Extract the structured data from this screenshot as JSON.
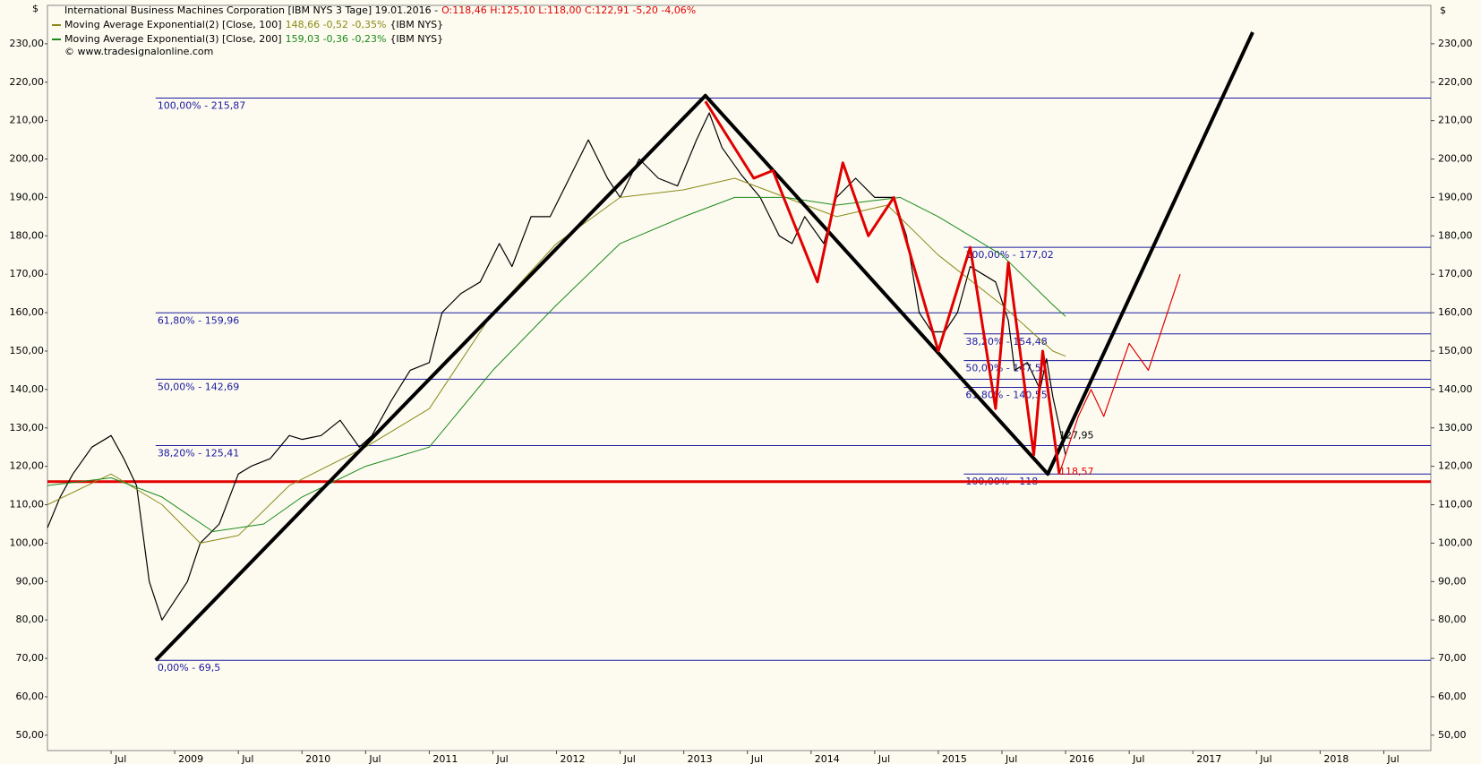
{
  "chart_data": {
    "type": "line",
    "currency": "$",
    "header": {
      "instrument": "International Business Machines Corporation [IBM NYS  3 Tage] 19.01.2016 -",
      "quote": "O:118,46 H:125,10 L:118,00 C:122,91 -5,20 -4,06%",
      "copyright": "© www.tradesignalonline.com"
    },
    "xlim": [
      2008.0,
      2018.87
    ],
    "ylim": [
      46,
      240
    ],
    "xticks": [
      {
        "value": 2008.5,
        "label": "Jul"
      },
      {
        "value": 2009,
        "label": "2009"
      },
      {
        "value": 2009.5,
        "label": "Jul"
      },
      {
        "value": 2010,
        "label": "2010"
      },
      {
        "value": 2010.5,
        "label": "Jul"
      },
      {
        "value": 2011,
        "label": "2011"
      },
      {
        "value": 2011.5,
        "label": "Jul"
      },
      {
        "value": 2012,
        "label": "2012"
      },
      {
        "value": 2012.5,
        "label": "Jul"
      },
      {
        "value": 2013,
        "label": "2013"
      },
      {
        "value": 2013.5,
        "label": "Jul"
      },
      {
        "value": 2014,
        "label": "2014"
      },
      {
        "value": 2014.5,
        "label": "Jul"
      },
      {
        "value": 2015,
        "label": "2015"
      },
      {
        "value": 2015.5,
        "label": "Jul"
      },
      {
        "value": 2016,
        "label": "2016"
      },
      {
        "value": 2016.5,
        "label": "Jul"
      },
      {
        "value": 2017,
        "label": "2017"
      },
      {
        "value": 2017.5,
        "label": "Jul"
      },
      {
        "value": 2018,
        "label": "2018"
      },
      {
        "value": 2018.5,
        "label": "Jul"
      }
    ],
    "yticks": [
      {
        "value": 50,
        "label": "50,00"
      },
      {
        "value": 60,
        "label": "60,00"
      },
      {
        "value": 70,
        "label": "70,00"
      },
      {
        "value": 80,
        "label": "80,00"
      },
      {
        "value": 90,
        "label": "90,00"
      },
      {
        "value": 100,
        "label": "100,00"
      },
      {
        "value": 110,
        "label": "110,00"
      },
      {
        "value": 120,
        "label": "120,00"
      },
      {
        "value": 130,
        "label": "130,00"
      },
      {
        "value": 140,
        "label": "140,00"
      },
      {
        "value": 150,
        "label": "150,00"
      },
      {
        "value": 160,
        "label": "160,00"
      },
      {
        "value": 170,
        "label": "170,00"
      },
      {
        "value": 180,
        "label": "180,00"
      },
      {
        "value": 190,
        "label": "190,00"
      },
      {
        "value": 200,
        "label": "200,00"
      },
      {
        "value": 210,
        "label": "210,00"
      },
      {
        "value": 220,
        "label": "220,00"
      },
      {
        "value": 230,
        "label": "230,00"
      }
    ],
    "series": [
      {
        "name": "International Business Machines Corporation [IBM NYS  3 Tage]",
        "color": "#000000",
        "width": 1.2,
        "x": [
          2008.0,
          2008.1,
          2008.2,
          2008.35,
          2008.5,
          2008.6,
          2008.7,
          2008.8,
          2008.9,
          2009.0,
          2009.1,
          2009.2,
          2009.35,
          2009.5,
          2009.6,
          2009.75,
          2009.9,
          2010.0,
          2010.15,
          2010.3,
          2010.45,
          2010.55,
          2010.7,
          2010.85,
          2011.0,
          2011.1,
          2011.25,
          2011.4,
          2011.55,
          2011.65,
          2011.8,
          2011.95,
          2012.1,
          2012.25,
          2012.4,
          2012.5,
          2012.65,
          2012.8,
          2012.95,
          2013.1,
          2013.2,
          2013.3,
          2013.45,
          2013.6,
          2013.75,
          2013.85,
          2013.95,
          2014.1,
          2014.2,
          2014.35,
          2014.5,
          2014.65,
          2014.75,
          2014.85,
          2014.95,
          2015.05,
          2015.15,
          2015.25,
          2015.35,
          2015.45,
          2015.55,
          2015.6,
          2015.7,
          2015.8,
          2015.85,
          2015.9,
          2016.0
        ],
        "values": [
          104,
          112,
          118,
          125,
          128,
          122,
          115,
          90,
          80,
          85,
          90,
          100,
          105,
          118,
          120,
          122,
          128,
          127,
          128,
          132,
          125,
          128,
          137,
          145,
          147,
          160,
          165,
          168,
          178,
          172,
          185,
          185,
          195,
          205,
          195,
          190,
          200,
          195,
          193,
          205,
          212,
          203,
          196,
          190,
          180,
          178,
          185,
          178,
          190,
          195,
          190,
          190,
          180,
          160,
          155,
          155,
          160,
          172,
          170,
          168,
          158,
          145,
          147,
          140,
          148,
          138,
          122.91
        ]
      },
      {
        "name": "Moving Average Exponential(2) [Close, 100]",
        "legend_values": "148,66 -0,52 -0,35%",
        "legend_suffix": "{IBM NYS}",
        "color": "#8a8a1a",
        "width": 1,
        "x": [
          2008.0,
          2008.5,
          2008.9,
          2009.2,
          2009.5,
          2009.9,
          2010.5,
          2011.0,
          2011.5,
          2012.0,
          2012.5,
          2013.0,
          2013.4,
          2013.8,
          2014.2,
          2014.6,
          2015.0,
          2015.5,
          2015.9,
          2016.0
        ],
        "values": [
          110,
          118,
          110,
          100,
          102,
          115,
          125,
          135,
          160,
          178,
          190,
          192,
          195,
          190,
          185,
          188,
          175,
          162,
          150,
          148.66
        ]
      },
      {
        "name": "Moving Average Exponential(3) [Close, 200]",
        "legend_values": "159,03 -0,36 -0,23%",
        "legend_suffix": "{IBM NYS}",
        "color": "#1a8a1a",
        "width": 1,
        "x": [
          2008.0,
          2008.5,
          2008.9,
          2009.3,
          2009.7,
          2010.0,
          2010.5,
          2011.0,
          2011.5,
          2012.0,
          2012.5,
          2013.0,
          2013.4,
          2013.8,
          2014.2,
          2014.7,
          2015.0,
          2015.5,
          2015.9,
          2016.0
        ],
        "values": [
          115,
          117,
          112,
          103,
          105,
          112,
          120,
          125,
          145,
          162,
          178,
          185,
          190,
          190,
          188,
          190,
          185,
          175,
          162,
          159.03
        ]
      }
    ],
    "fib_levels": [
      {
        "value": 215.87,
        "label": "100,00% - 215,87",
        "start": 2008.85
      },
      {
        "value": 159.96,
        "label": "61,80% - 159,96",
        "start": 2008.85
      },
      {
        "value": 142.69,
        "label": "50,00% - 142,69",
        "start": 2008.85
      },
      {
        "value": 125.41,
        "label": "38,20% - 125,41",
        "start": 2008.85
      },
      {
        "value": 69.5,
        "label": "0,00% - 69,5",
        "start": 2008.85
      },
      {
        "value": 177.02,
        "label": "100,00% - 177,02",
        "start": 2015.2
      },
      {
        "value": 154.48,
        "label": "38,20% - 154,48",
        "start": 2015.2
      },
      {
        "value": 147.51,
        "label": "50,00% - 147,51",
        "start": 2015.2
      },
      {
        "value": 140.55,
        "label": "61,80% - 140,55",
        "start": 2015.2
      },
      {
        "value": 118,
        "label": "100,00% - 118",
        "start": 2015.2
      }
    ],
    "fib_color": "#1a1aa0",
    "support": {
      "value": 116,
      "color": "#e00000"
    },
    "annotations": [
      {
        "x": 2015.95,
        "y": 127.95,
        "label": "127,95",
        "color": "#000000"
      },
      {
        "x": 2015.95,
        "y": 118.57,
        "label": "118,57",
        "color": "#e00000"
      }
    ],
    "trendlines": [
      {
        "color": "#000000",
        "width": 4,
        "x": [
          2008.85,
          2013.17,
          2015.86,
          2017.47
        ],
        "y": [
          69.5,
          216.5,
          118,
          233
        ]
      },
      {
        "color": "#e00000",
        "width": 3,
        "x": [
          2013.17,
          2013.55,
          2013.7,
          2014.05,
          2014.25,
          2014.45,
          2014.65,
          2015.0,
          2015.25,
          2015.45,
          2015.55,
          2015.75,
          2015.82,
          2015.95
        ],
        "y": [
          215,
          195,
          197,
          168,
          199,
          180,
          190,
          150,
          177,
          135,
          173,
          123,
          150,
          118
        ]
      },
      {
        "color": "#e00000",
        "width": 1.2,
        "x": [
          2015.95,
          2016.1,
          2016.2,
          2016.3,
          2016.5,
          2016.65,
          2016.9
        ],
        "y": [
          118,
          133,
          140,
          133,
          152,
          145,
          170
        ]
      }
    ]
  }
}
